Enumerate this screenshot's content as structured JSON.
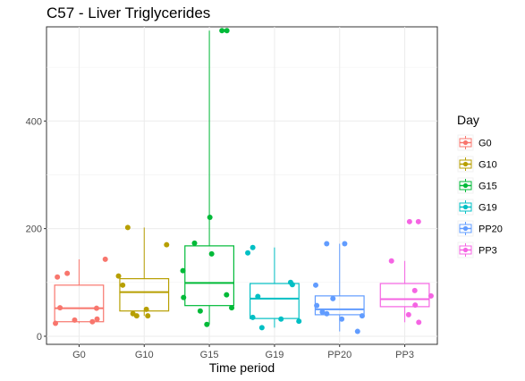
{
  "chart_data": {
    "type": "box",
    "title": "C57 - Liver Triglycerides",
    "xlabel": "Time period",
    "ylabel": "",
    "ylim": [
      -15,
      575
    ],
    "yticks": [
      0,
      200,
      400
    ],
    "grid": true,
    "legend": {
      "title": "Day",
      "placement": "right"
    },
    "categories": [
      "G0",
      "G10",
      "G15",
      "G19",
      "PP20",
      "PP3"
    ],
    "series": [
      {
        "name": "G0",
        "color": "#F8766D",
        "box": {
          "q1": 27,
          "median": 52,
          "q3": 95,
          "min": 24,
          "max": 143
        },
        "points": [
          27,
          24,
          30,
          32,
          53,
          52,
          110,
          143,
          117
        ]
      },
      {
        "name": "G10",
        "color": "#B79F00",
        "box": {
          "q1": 47,
          "median": 82,
          "q3": 107,
          "min": 38,
          "max": 202
        },
        "points": [
          38,
          38,
          42,
          50,
          95,
          112,
          170,
          202
        ]
      },
      {
        "name": "G15",
        "color": "#00BA38",
        "box": {
          "q1": 57,
          "median": 99,
          "q3": 168,
          "min": 22,
          "max": 568
        },
        "points": [
          22,
          47,
          53,
          72,
          77,
          122,
          153,
          173,
          221,
          568,
          568
        ]
      },
      {
        "name": "G19",
        "color": "#00BFC4",
        "box": {
          "q1": 33,
          "median": 70,
          "q3": 98,
          "min": 16,
          "max": 165
        },
        "points": [
          16,
          28,
          32,
          35,
          74,
          96,
          100,
          155,
          165
        ]
      },
      {
        "name": "PP20",
        "color": "#619CFF",
        "box": {
          "q1": 40,
          "median": 50,
          "q3": 75,
          "min": 9,
          "max": 172
        },
        "points": [
          9,
          32,
          38,
          42,
          45,
          57,
          70,
          95,
          172,
          172
        ]
      },
      {
        "name": "PP3",
        "color": "#F564E3",
        "box": {
          "q1": 55,
          "median": 69,
          "q3": 98,
          "min": 26,
          "max": 140
        },
        "points": [
          26,
          40,
          58,
          75,
          85,
          140,
          213,
          213
        ]
      }
    ]
  }
}
